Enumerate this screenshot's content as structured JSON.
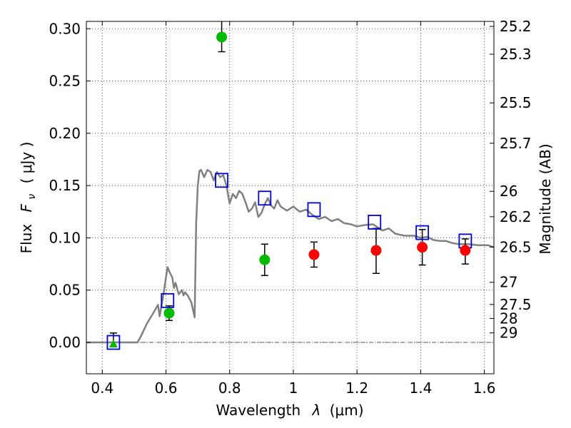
{
  "chart_data": {
    "type": "scatter",
    "xlabel_prefix": "Wavelength",
    "xlabel_symbol": "λ",
    "xlabel_unit": "(μm)",
    "ylabel_prefix": "Flux",
    "ylabel_symbol": "F",
    "ylabel_subscript": "ν",
    "ylabel_unit": "( μJy )",
    "y2label": "Magnitude (AB)",
    "xlim": [
      0.35,
      1.63
    ],
    "ylim": [
      -0.03,
      0.307
    ],
    "grid": true,
    "x_ticks": [
      {
        "value": 0.4,
        "label": "0.4"
      },
      {
        "value": 0.6,
        "label": "0.6"
      },
      {
        "value": 0.8,
        "label": "0.8"
      },
      {
        "value": 1.0,
        "label": "1"
      },
      {
        "value": 1.2,
        "label": "1.2"
      },
      {
        "value": 1.4,
        "label": "1.4"
      },
      {
        "value": 1.6,
        "label": "1.6"
      }
    ],
    "y_ticks": [
      {
        "value": 0.0,
        "label": "0.00"
      },
      {
        "value": 0.05,
        "label": "0.05"
      },
      {
        "value": 0.1,
        "label": "0.10"
      },
      {
        "value": 0.15,
        "label": "0.15"
      },
      {
        "value": 0.2,
        "label": "0.20"
      },
      {
        "value": 0.25,
        "label": "0.25"
      },
      {
        "value": 0.3,
        "label": "0.30"
      }
    ],
    "y2_ticks": [
      {
        "flux": 0.3022,
        "label": "25.2"
      },
      {
        "flux": 0.2756,
        "label": "25.3"
      },
      {
        "flux": 0.2291,
        "label": "25.5"
      },
      {
        "flux": 0.1905,
        "label": "25.7"
      },
      {
        "flux": 0.1445,
        "label": "26"
      },
      {
        "flux": 0.1202,
        "label": "26.2"
      },
      {
        "flux": 0.0912,
        "label": "26.5"
      },
      {
        "flux": 0.0575,
        "label": "27"
      },
      {
        "flux": 0.0363,
        "label": "27.5"
      },
      {
        "flux": 0.0229,
        "label": "28"
      },
      {
        "flux": 0.0091,
        "label": "29"
      }
    ],
    "sed_model": {
      "color": "#808080",
      "x": [
        0.35,
        0.51,
        0.52,
        0.54,
        0.56,
        0.575,
        0.58,
        0.59,
        0.6,
        0.605,
        0.61,
        0.62,
        0.625,
        0.63,
        0.64,
        0.65,
        0.655,
        0.66,
        0.67,
        0.68,
        0.69,
        0.695,
        0.7,
        0.705,
        0.71,
        0.72,
        0.73,
        0.74,
        0.75,
        0.76,
        0.77,
        0.78,
        0.79,
        0.8,
        0.81,
        0.82,
        0.83,
        0.84,
        0.85,
        0.86,
        0.87,
        0.88,
        0.89,
        0.9,
        0.91,
        0.92,
        0.93,
        0.94,
        0.95,
        0.96,
        0.98,
        1.0,
        1.02,
        1.04,
        1.06,
        1.08,
        1.1,
        1.12,
        1.14,
        1.16,
        1.18,
        1.2,
        1.22,
        1.25,
        1.28,
        1.3,
        1.32,
        1.35,
        1.38,
        1.4,
        1.42,
        1.44,
        1.46,
        1.48,
        1.5,
        1.52,
        1.55,
        1.58,
        1.61,
        1.63
      ],
      "y": [
        0.0,
        0.0,
        0.005,
        0.018,
        0.028,
        0.036,
        0.025,
        0.042,
        0.062,
        0.072,
        0.068,
        0.062,
        0.052,
        0.057,
        0.046,
        0.05,
        0.045,
        0.048,
        0.044,
        0.038,
        0.024,
        0.115,
        0.15,
        0.164,
        0.165,
        0.158,
        0.165,
        0.163,
        0.155,
        0.163,
        0.158,
        0.16,
        0.15,
        0.133,
        0.142,
        0.138,
        0.145,
        0.142,
        0.134,
        0.125,
        0.128,
        0.134,
        0.12,
        0.124,
        0.132,
        0.138,
        0.131,
        0.128,
        0.136,
        0.13,
        0.126,
        0.13,
        0.125,
        0.127,
        0.122,
        0.118,
        0.12,
        0.116,
        0.118,
        0.114,
        0.113,
        0.111,
        0.112,
        0.113,
        0.107,
        0.109,
        0.104,
        0.102,
        0.102,
        0.1,
        0.101,
        0.098,
        0.097,
        0.097,
        0.095,
        0.094,
        0.094,
        0.093,
        0.093,
        0.091
      ]
    },
    "model_photometry": {
      "color": "#0000dd",
      "points": [
        {
          "x": 0.435,
          "y": 0.0
        },
        {
          "x": 0.605,
          "y": 0.04
        },
        {
          "x": 0.775,
          "y": 0.155
        },
        {
          "x": 0.91,
          "y": 0.138
        },
        {
          "x": 1.065,
          "y": 0.127
        },
        {
          "x": 1.255,
          "y": 0.115
        },
        {
          "x": 1.405,
          "y": 0.105
        },
        {
          "x": 1.54,
          "y": 0.097
        }
      ]
    },
    "observed_green": {
      "color": "#00bb00",
      "points": [
        {
          "x": 0.61,
          "y": 0.028,
          "err_low": 0.007,
          "err_high": 0.007
        },
        {
          "x": 0.775,
          "y": 0.292,
          "err_low": 0.014,
          "err_high": 0.015
        },
        {
          "x": 0.91,
          "y": 0.079,
          "err_low": 0.015,
          "err_high": 0.015
        }
      ]
    },
    "observed_green_limit": {
      "color": "#00bb00",
      "points": [
        {
          "x": 0.435,
          "y": -0.002,
          "err_high": 0.011
        }
      ]
    },
    "observed_red": {
      "color": "#ff0000",
      "points": [
        {
          "x": 1.065,
          "y": 0.084,
          "err_low": 0.012,
          "err_high": 0.012
        },
        {
          "x": 1.26,
          "y": 0.088,
          "err_low": 0.022,
          "err_high": 0.021
        },
        {
          "x": 1.405,
          "y": 0.091,
          "err_low": 0.017,
          "err_high": 0.017
        },
        {
          "x": 1.54,
          "y": 0.088,
          "err_low": 0.013,
          "err_high": 0.011
        }
      ]
    }
  }
}
